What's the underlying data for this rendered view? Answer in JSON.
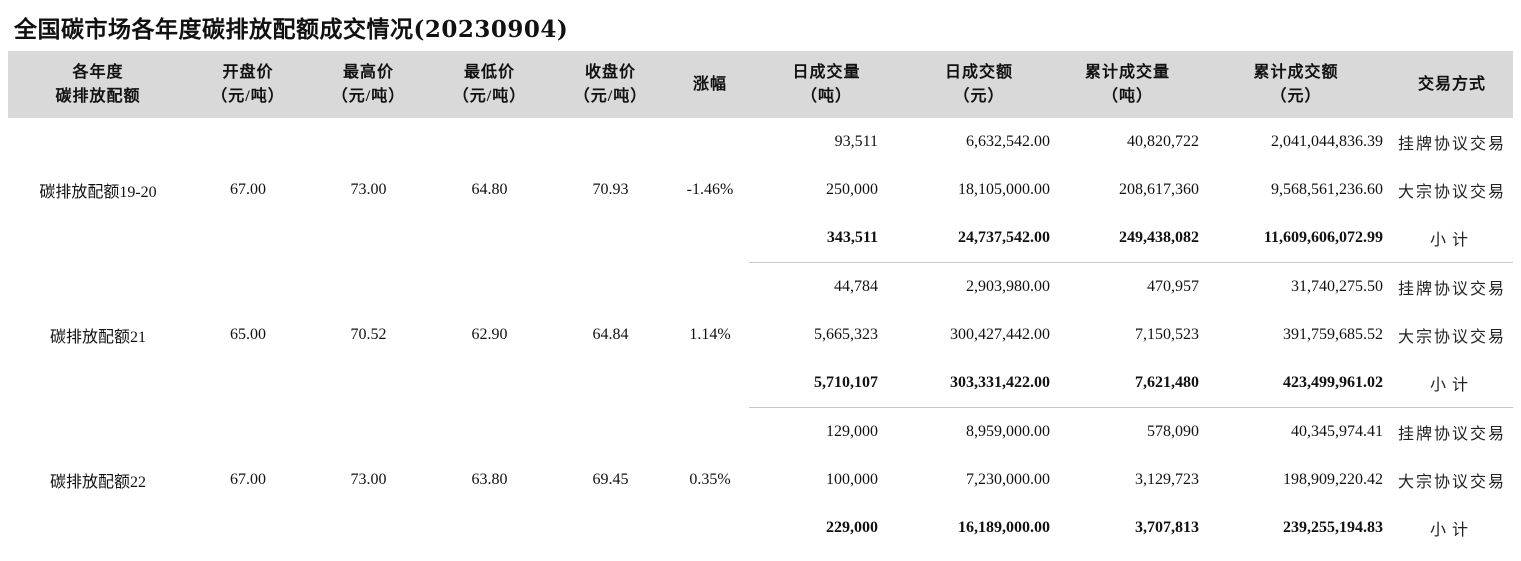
{
  "title": "全国碳市场各年度碳排放配额成交情况(20230904)",
  "headers": [
    [
      "各年度",
      "碳排放配额"
    ],
    [
      "开盘价",
      "（元/吨）"
    ],
    [
      "最高价",
      "（元/吨）"
    ],
    [
      "最低价",
      "（元/吨）"
    ],
    [
      "收盘价",
      "（元/吨）"
    ],
    [
      "涨幅",
      ""
    ],
    [
      "日成交量",
      "（吨）"
    ],
    [
      "日成交额",
      "（元）"
    ],
    [
      "累计成交量",
      "（吨）"
    ],
    [
      "累计成交额",
      "（元）"
    ],
    [
      "交易方式",
      ""
    ]
  ],
  "groups": [
    {
      "name": "碳排放配额19-20",
      "open": "67.00",
      "high": "73.00",
      "low": "64.80",
      "close": "70.93",
      "change": "-1.46%",
      "rows": [
        {
          "daily_volume": "93,511",
          "daily_amount": "6,632,542.00",
          "cum_volume": "40,820,722",
          "cum_amount": "2,041,044,836.39",
          "mode": "挂牌协议交易"
        },
        {
          "daily_volume": "250,000",
          "daily_amount": "18,105,000.00",
          "cum_volume": "208,617,360",
          "cum_amount": "9,568,561,236.60",
          "mode": "大宗协议交易"
        },
        {
          "daily_volume": "343,511",
          "daily_amount": "24,737,542.00",
          "cum_volume": "249,438,082",
          "cum_amount": "11,609,606,072.99",
          "mode": "小计"
        }
      ]
    },
    {
      "name": "碳排放配额21",
      "open": "65.00",
      "high": "70.52",
      "low": "62.90",
      "close": "64.84",
      "change": "1.14%",
      "rows": [
        {
          "daily_volume": "44,784",
          "daily_amount": "2,903,980.00",
          "cum_volume": "470,957",
          "cum_amount": "31,740,275.50",
          "mode": "挂牌协议交易"
        },
        {
          "daily_volume": "5,665,323",
          "daily_amount": "300,427,442.00",
          "cum_volume": "7,150,523",
          "cum_amount": "391,759,685.52",
          "mode": "大宗协议交易"
        },
        {
          "daily_volume": "5,710,107",
          "daily_amount": "303,331,422.00",
          "cum_volume": "7,621,480",
          "cum_amount": "423,499,961.02",
          "mode": "小计"
        }
      ]
    },
    {
      "name": "碳排放配额22",
      "open": "67.00",
      "high": "73.00",
      "low": "63.80",
      "close": "69.45",
      "change": "0.35%",
      "rows": [
        {
          "daily_volume": "129,000",
          "daily_amount": "8,959,000.00",
          "cum_volume": "578,090",
          "cum_amount": "40,345,974.41",
          "mode": "挂牌协议交易"
        },
        {
          "daily_volume": "100,000",
          "daily_amount": "7,230,000.00",
          "cum_volume": "3,129,723",
          "cum_amount": "198,909,220.42",
          "mode": "大宗协议交易"
        },
        {
          "daily_volume": "229,000",
          "daily_amount": "16,189,000.00",
          "cum_volume": "3,707,813",
          "cum_amount": "239,255,194.83",
          "mode": "小计"
        }
      ]
    }
  ]
}
